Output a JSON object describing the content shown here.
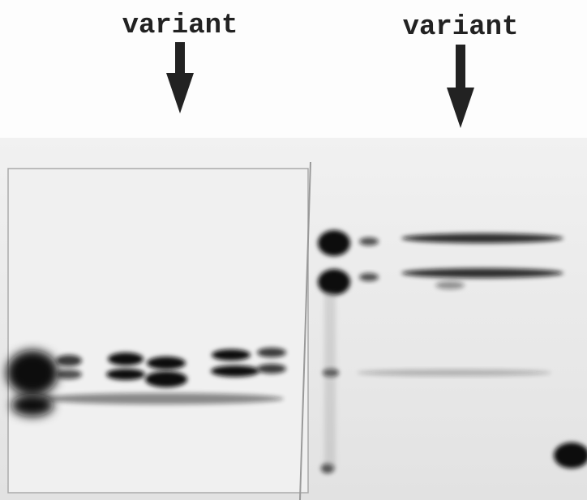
{
  "labels": [
    "variant",
    "variant"
  ]
}
